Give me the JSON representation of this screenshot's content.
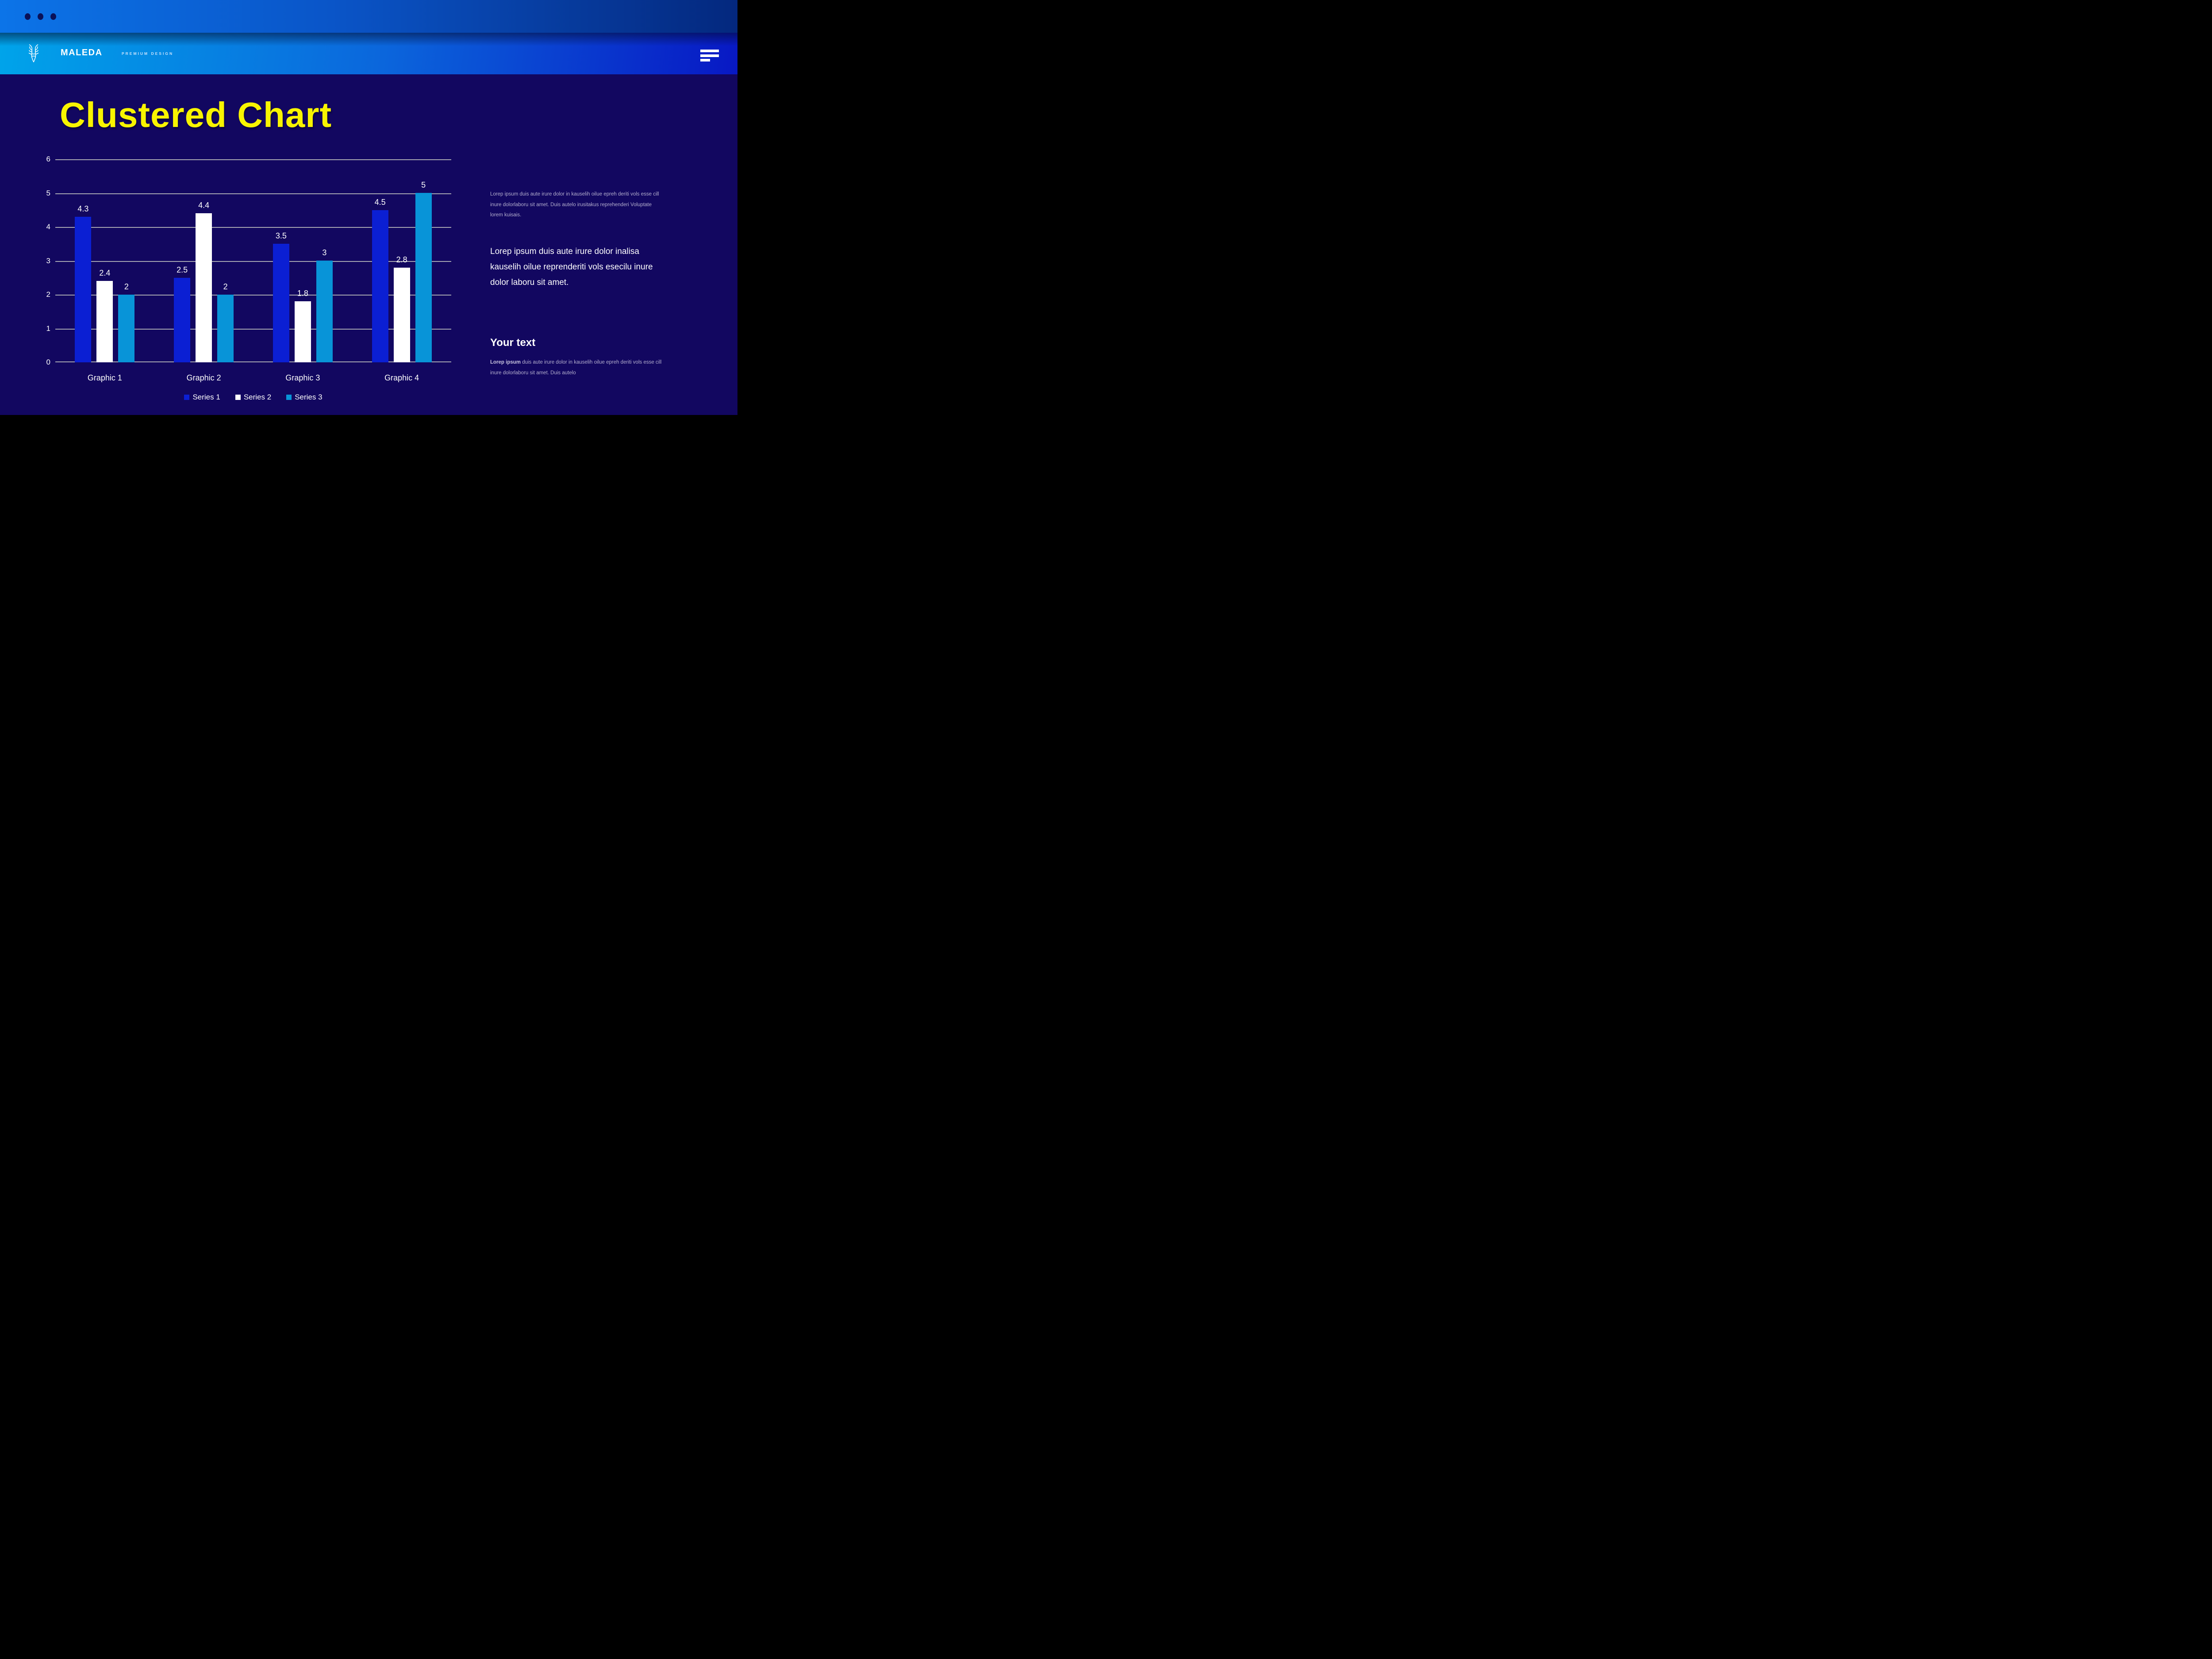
{
  "window": {
    "controls": [
      "dot",
      "dot",
      "dot"
    ]
  },
  "header": {
    "brand": "MALEDA",
    "tagline": "PREMIUM DESIGN",
    "menu_icon": "hamburger-icon",
    "logo_icon": "deer-logo-icon"
  },
  "main": {
    "title": "Clustered Chart"
  },
  "chart_data": {
    "type": "bar",
    "title": "Clustered Chart",
    "categories": [
      "Graphic 1",
      "Graphic 2",
      "Graphic 3",
      "Graphic 4"
    ],
    "series": [
      {
        "name": "Series 1",
        "color": "#0B1FD3",
        "values": [
          4.3,
          2.5,
          3.5,
          4.5
        ]
      },
      {
        "name": "Series 2",
        "color": "#FFFFFF",
        "values": [
          2.4,
          4.4,
          1.8,
          2.8
        ]
      },
      {
        "name": "Series 3",
        "color": "#0894D8",
        "values": [
          2,
          2,
          3,
          5
        ]
      }
    ],
    "ylim": [
      0,
      6
    ],
    "yticks": [
      0,
      1,
      2,
      3,
      4,
      5,
      6
    ],
    "grid": true,
    "gridline_color": "#A7A7B2",
    "legend_position": "bottom"
  },
  "panel": {
    "para1": "Lorep  ipsum duis aute irure dolor in kauselih oilue epreh deriti vols esse cill inure dolorlaboru sit amet. Duis autelo irusitakus reprehenderi Voluptate lorem kuisais.",
    "para2": "Lorep  ipsum duis aute irure dolor inalisa kauselih oilue reprenderiti vols esecilu inure dolor laboru sit amet.",
    "heading": "Your text",
    "para3_bold": "Lorep ipsum",
    "para3_rest": " duis aute irure dolor in kauselih oilue epreh deriti vols esse cill inure dolorlaboru sit amet. Duis autelo"
  },
  "colors": {
    "background": "#120760",
    "title_accent": "#F8F400",
    "topbar_gradient_left": "#0C74E8",
    "topbar_gradient_right": "#04287E",
    "header_gradient_left": "#00A4EA",
    "header_gradient_right": "#0818C4",
    "muted_text": "#B3AECD",
    "window_dot": "#0A1158"
  }
}
